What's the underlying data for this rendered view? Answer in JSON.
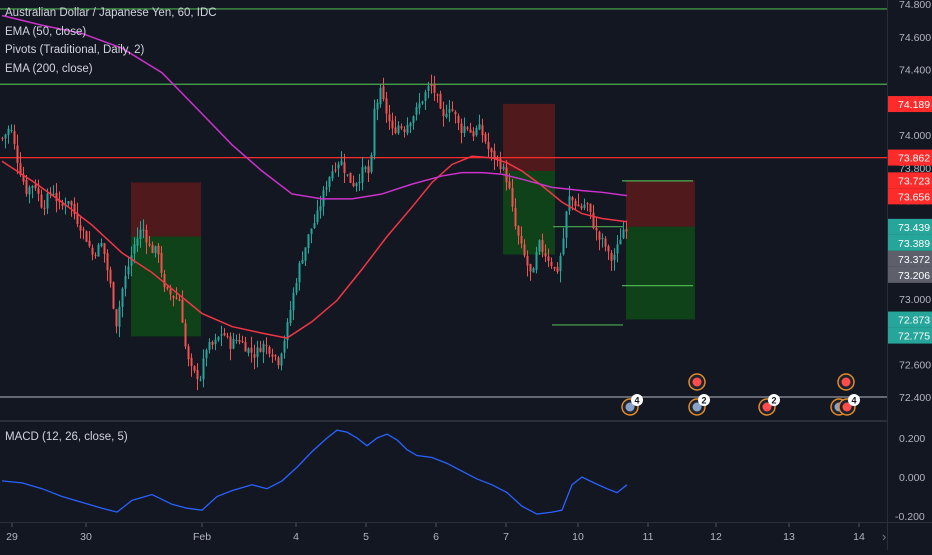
{
  "legend": {
    "title": "Australian Dollar / Japanese Yen, 60, IDC",
    "ema50": "EMA (50, close)",
    "pivots": "Pivots (Traditional, Daily, 2)",
    "ema200": "EMA (200, close)"
  },
  "macd_legend": "MACD (12, 26, close, 5)",
  "colors": {
    "background": "#131722",
    "up": "#26a69a",
    "down": "#ef5350",
    "ema50": "#f23645",
    "ema200": "#cc33cc",
    "pivot_green": "#4caf50",
    "pivot_red": "#ff2b2b",
    "pivot_gray": "#9598a1",
    "macd": "#2962ff",
    "risk_box": "#5c1b1b",
    "reward_box": "#0f4a16"
  },
  "icons": [
    "nav-arrow-icon",
    "event-flag-icon"
  ],
  "chart_data": [
    {
      "type": "candlestick",
      "title": "Australian Dollar / Japanese Yen, 60, IDC",
      "ylim": [
        72.27,
        74.82
      ],
      "price_ticks": [
        "74.800",
        "74.600",
        "74.400",
        "74.200",
        "74.000",
        "73.800",
        "73.600",
        "73.400",
        "73.200",
        "73.000",
        "72.800",
        "72.600",
        "72.400"
      ],
      "x_ticks": [
        "29",
        "30",
        "Feb",
        "4",
        "5",
        "6",
        "7",
        "10",
        "11",
        "12",
        "13",
        "14"
      ],
      "price_badges": [
        {
          "text": "74.189",
          "color": "#ff2b2b"
        },
        {
          "text": "73.862",
          "color": "#ff2b2b"
        },
        {
          "text": "73.723",
          "color": "#ff2b2b"
        },
        {
          "text": "73.656",
          "color": "#ff2b2b"
        },
        {
          "text": "73.439",
          "color": "#26a69a"
        },
        {
          "text": "73.389",
          "color": "#26a69a"
        },
        {
          "text": "73.372",
          "color": "#5d606b"
        },
        {
          "text": "73.206",
          "color": "#5d606b"
        },
        {
          "text": "72.873",
          "color": "#26a69a"
        },
        {
          "text": "72.775",
          "color": "#26a69a"
        }
      ],
      "pivot_levels": [
        {
          "value": 74.77,
          "color": "#4caf50"
        },
        {
          "value": 74.31,
          "color": "#4caf50"
        },
        {
          "value": 73.862,
          "color": "#ff2b2b"
        },
        {
          "value": 72.4,
          "color": "#9598a1"
        }
      ],
      "short_pivot_segments": [
        {
          "value": 73.72,
          "color": "#4caf50"
        },
        {
          "value": 73.44,
          "color": "#4caf50"
        },
        {
          "value": 73.08,
          "color": "#4caf50"
        },
        {
          "value": 72.84,
          "color": "#4caf50"
        }
      ],
      "positions": [
        {
          "entry": 73.38,
          "stop": 73.71,
          "target": 72.77,
          "kind": "short"
        },
        {
          "entry": 73.78,
          "stop": 74.19,
          "target": 73.27,
          "kind": "short"
        },
        {
          "entry": 73.44,
          "stop": 73.723,
          "target": 72.874,
          "kind": "short"
        }
      ],
      "series": [
        {
          "name": "EMA (50, close)",
          "color": "#f23645",
          "values": [
            [
              0,
              73.84
            ],
            [
              30,
              73.72
            ],
            [
              60,
              73.59
            ],
            [
              90,
              73.45
            ],
            [
              120,
              73.28
            ],
            [
              150,
              73.16
            ],
            [
              180,
              73.01
            ],
            [
              200,
              72.91
            ],
            [
              230,
              72.83
            ],
            [
              260,
              72.79
            ],
            [
              285,
              72.76
            ],
            [
              310,
              72.86
            ],
            [
              335,
              72.99
            ],
            [
              360,
              73.18
            ],
            [
              385,
              73.38
            ],
            [
              410,
              73.56
            ],
            [
              430,
              73.71
            ],
            [
              450,
              73.82
            ],
            [
              470,
              73.87
            ],
            [
              490,
              73.86
            ],
            [
              505,
              73.83
            ],
            [
              520,
              73.78
            ],
            [
              540,
              73.69
            ],
            [
              560,
              73.59
            ],
            [
              580,
              73.52
            ],
            [
              600,
              73.49
            ],
            [
              625,
              73.47
            ]
          ]
        },
        {
          "name": "EMA (200, close)",
          "color": "#cc33cc",
          "values": [
            [
              0,
              74.73
            ],
            [
              40,
              74.67
            ],
            [
              80,
              74.62
            ],
            [
              120,
              74.53
            ],
            [
              160,
              74.38
            ],
            [
              200,
              74.13
            ],
            [
              230,
              73.94
            ],
            [
              260,
              73.78
            ],
            [
              290,
              73.64
            ],
            [
              320,
              73.61
            ],
            [
              350,
              73.61
            ],
            [
              380,
              73.64
            ],
            [
              410,
              73.7
            ],
            [
              440,
              73.75
            ],
            [
              460,
              73.77
            ],
            [
              480,
              73.77
            ],
            [
              500,
              73.76
            ],
            [
              520,
              73.73
            ],
            [
              550,
              73.68
            ],
            [
              580,
              73.66
            ],
            [
              600,
              73.65
            ],
            [
              625,
              73.63
            ]
          ]
        }
      ],
      "candles_path": [
        [
          0,
          73.98
        ],
        [
          8,
          74.05
        ],
        [
          16,
          73.82
        ],
        [
          24,
          73.66
        ],
        [
          32,
          73.71
        ],
        [
          40,
          73.56
        ],
        [
          50,
          73.67
        ],
        [
          58,
          73.55
        ],
        [
          66,
          73.61
        ],
        [
          74,
          73.49
        ],
        [
          82,
          73.4
        ],
        [
          90,
          73.27
        ],
        [
          100,
          73.34
        ],
        [
          108,
          73.08
        ],
        [
          114,
          72.85
        ],
        [
          120,
          73.06
        ],
        [
          126,
          73.2
        ],
        [
          132,
          73.33
        ],
        [
          140,
          73.44
        ],
        [
          148,
          73.3
        ],
        [
          156,
          73.29
        ],
        [
          162,
          73.05
        ],
        [
          170,
          73.02
        ],
        [
          178,
          72.99
        ],
        [
          184,
          72.65
        ],
        [
          190,
          72.55
        ],
        [
          198,
          72.52
        ],
        [
          204,
          72.7
        ],
        [
          212,
          72.72
        ],
        [
          220,
          72.8
        ],
        [
          228,
          72.72
        ],
        [
          236,
          72.76
        ],
        [
          244,
          72.7
        ],
        [
          252,
          72.66
        ],
        [
          260,
          72.72
        ],
        [
          268,
          72.69
        ],
        [
          276,
          72.62
        ],
        [
          284,
          72.8
        ],
        [
          290,
          73.0
        ],
        [
          296,
          73.18
        ],
        [
          302,
          73.3
        ],
        [
          308,
          73.42
        ],
        [
          314,
          73.49
        ],
        [
          320,
          73.62
        ],
        [
          326,
          73.74
        ],
        [
          332,
          73.81
        ],
        [
          338,
          73.85
        ],
        [
          344,
          73.76
        ],
        [
          350,
          73.7
        ],
        [
          356,
          73.73
        ],
        [
          362,
          73.8
        ],
        [
          368,
          73.75
        ],
        [
          372,
          74.15
        ],
        [
          378,
          74.26
        ],
        [
          384,
          74.14
        ],
        [
          390,
          74.02
        ],
        [
          396,
          74.06
        ],
        [
          402,
          74.04
        ],
        [
          408,
          74.1
        ],
        [
          414,
          74.15
        ],
        [
          420,
          74.22
        ],
        [
          428,
          74.31
        ],
        [
          434,
          74.24
        ],
        [
          440,
          74.08
        ],
        [
          446,
          74.19
        ],
        [
          452,
          74.13
        ],
        [
          458,
          74.03
        ],
        [
          464,
          74.06
        ],
        [
          470,
          74.0
        ],
        [
          476,
          74.05
        ],
        [
          482,
          73.98
        ],
        [
          488,
          73.88
        ],
        [
          494,
          73.86
        ],
        [
          500,
          73.8
        ],
        [
          506,
          73.7
        ],
        [
          512,
          73.46
        ],
        [
          518,
          73.33
        ],
        [
          524,
          73.22
        ],
        [
          530,
          73.12
        ],
        [
          536,
          73.34
        ],
        [
          542,
          73.28
        ],
        [
          548,
          73.23
        ],
        [
          554,
          73.15
        ],
        [
          560,
          73.32
        ],
        [
          566,
          73.62
        ],
        [
          572,
          73.59
        ],
        [
          578,
          73.55
        ],
        [
          584,
          73.59
        ],
        [
          590,
          73.47
        ],
        [
          596,
          73.37
        ],
        [
          602,
          73.34
        ],
        [
          608,
          73.23
        ],
        [
          614,
          73.29
        ],
        [
          620,
          73.42
        ],
        [
          624,
          73.44
        ]
      ],
      "event_flags": [
        {
          "group": 1,
          "count": "4"
        },
        {
          "group": 2,
          "count": "2"
        },
        {
          "group": 3,
          "count": "2"
        },
        {
          "group": 4,
          "count": "4"
        }
      ]
    },
    {
      "type": "line",
      "title": "MACD (12, 26, close, 5)",
      "ylim": [
        -0.23,
        0.29
      ],
      "y_ticks": [
        "0.200",
        "0.000",
        "-0.200"
      ],
      "series": [
        {
          "name": "MACD (12, 26, close, 5)",
          "color": "#2962ff",
          "values": [
            [
              0,
              -0.02
            ],
            [
              20,
              -0.03
            ],
            [
              40,
              -0.06
            ],
            [
              60,
              -0.1
            ],
            [
              80,
              -0.13
            ],
            [
              100,
              -0.16
            ],
            [
              115,
              -0.18
            ],
            [
              130,
              -0.12
            ],
            [
              150,
              -0.09
            ],
            [
              170,
              -0.14
            ],
            [
              185,
              -0.16
            ],
            [
              200,
              -0.17
            ],
            [
              215,
              -0.1
            ],
            [
              230,
              -0.07
            ],
            [
              250,
              -0.04
            ],
            [
              265,
              -0.06
            ],
            [
              280,
              -0.02
            ],
            [
              295,
              0.05
            ],
            [
              310,
              0.13
            ],
            [
              325,
              0.2
            ],
            [
              335,
              0.24
            ],
            [
              345,
              0.23
            ],
            [
              355,
              0.2
            ],
            [
              365,
              0.16
            ],
            [
              375,
              0.2
            ],
            [
              385,
              0.22
            ],
            [
              395,
              0.19
            ],
            [
              405,
              0.14
            ],
            [
              415,
              0.11
            ],
            [
              430,
              0.1
            ],
            [
              445,
              0.07
            ],
            [
              460,
              0.03
            ],
            [
              475,
              -0.01
            ],
            [
              490,
              -0.04
            ],
            [
              505,
              -0.08
            ],
            [
              520,
              -0.15
            ],
            [
              535,
              -0.19
            ],
            [
              550,
              -0.18
            ],
            [
              560,
              -0.17
            ],
            [
              570,
              -0.04
            ],
            [
              580,
              0.0
            ],
            [
              592,
              -0.03
            ],
            [
              605,
              -0.06
            ],
            [
              615,
              -0.08
            ],
            [
              625,
              -0.04
            ]
          ]
        }
      ]
    }
  ]
}
